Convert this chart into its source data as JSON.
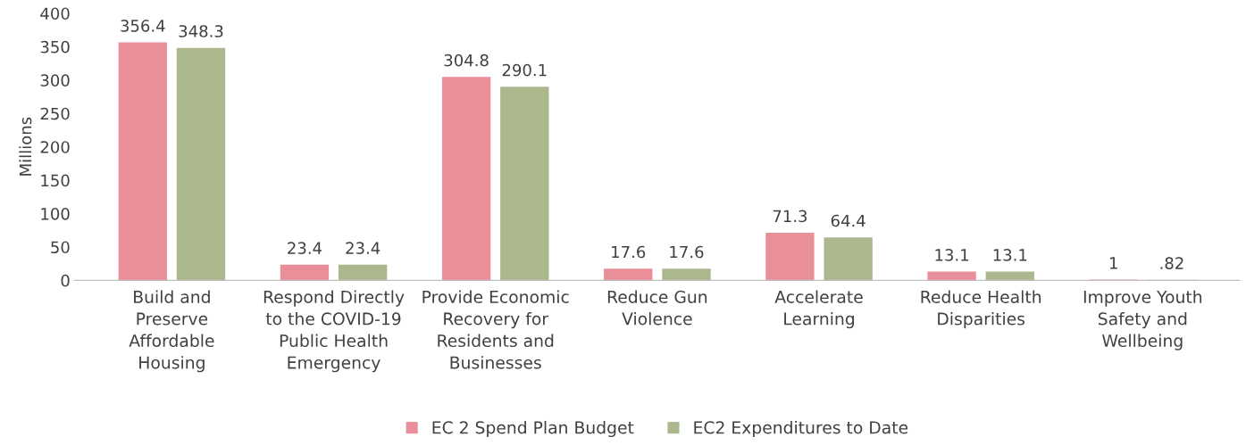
{
  "chart_data": {
    "type": "bar",
    "ylabel": "Millions",
    "categories": [
      "Build and\nPreserve\nAffordable\nHousing",
      "Respond Directly\nto the COVID-19\nPublic Health\nEmergency",
      "Provide Economic\nRecovery for\nResidents and\nBusinesses",
      "Reduce Gun\nViolence",
      "Accelerate\nLearning",
      "Reduce Health\nDisparities",
      "Improve Youth\nSafety and\nWellbeing"
    ],
    "series": [
      {
        "name": "EC 2 Spend Plan Budget",
        "color": "#e98f99",
        "values": [
          356.4,
          23.4,
          304.8,
          17.6,
          71.3,
          13.1,
          1
        ],
        "value_labels": [
          "356.4",
          "23.4",
          "304.8",
          "17.6",
          "71.3",
          "13.1",
          "1"
        ]
      },
      {
        "name": "EC2 Expenditures to Date",
        "color": "#abb78c",
        "values": [
          348.3,
          23.4,
          290.1,
          17.6,
          64.4,
          13.1,
          0.82
        ],
        "value_labels": [
          "348.3",
          "23.4",
          "290.1",
          "17.6",
          "64.4",
          "13.1",
          ".82"
        ]
      }
    ],
    "ylim": [
      0,
      400
    ],
    "yticks": [
      0,
      50,
      100,
      150,
      200,
      250,
      300,
      350,
      400
    ],
    "grid": false,
    "legend": "bottom"
  }
}
